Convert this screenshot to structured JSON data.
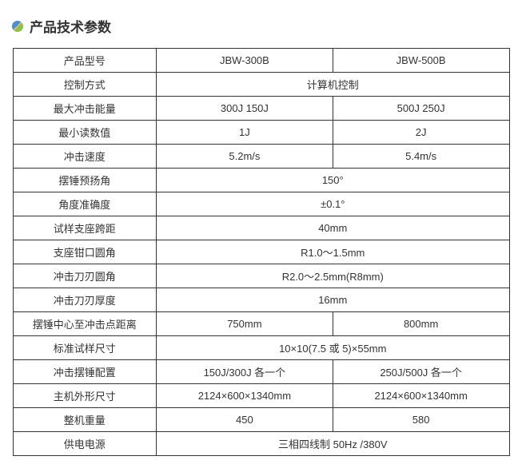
{
  "title": "产品技术参数",
  "colors": {
    "border": "#333333",
    "text": "#333333",
    "background": "#ffffff"
  },
  "table": {
    "header": {
      "label": "产品型号",
      "col1": "JBW-300B",
      "col2": "JBW-500B"
    },
    "rows": [
      {
        "label": "控制方式",
        "merged": "计算机控制"
      },
      {
        "label": "最大冲击能量",
        "col1": "300J 150J",
        "col2": "500J 250J"
      },
      {
        "label": "最小读数值",
        "col1": "1J",
        "col2": "2J"
      },
      {
        "label": "冲击速度",
        "col1": "5.2m/s",
        "col2": "5.4m/s"
      },
      {
        "label": "摆锤预扬角",
        "merged": "150°"
      },
      {
        "label": "角度准确度",
        "merged": "±0.1°"
      },
      {
        "label": "试样支座跨距",
        "merged": "40mm"
      },
      {
        "label": "支座钳口圆角",
        "merged": "R1.0～1.5mm"
      },
      {
        "label": "冲击刀刃圆角",
        "merged": "R2.0～2.5mm(R8mm)"
      },
      {
        "label": "冲击刀刃厚度",
        "merged": "16mm"
      },
      {
        "label": "摆锤中心至冲击点距离",
        "col1": "750mm",
        "col2": "800mm"
      },
      {
        "label": "标准试样尺寸",
        "merged": "10×10(7.5 或 5)×55mm"
      },
      {
        "label": "冲击摆锤配置",
        "col1": "150J/300J 各一个",
        "col2": "250J/500J 各一个"
      },
      {
        "label": "主机外形尺寸",
        "col1": "2124×600×1340mm",
        "col2": "2124×600×1340mm"
      },
      {
        "label": "整机重量",
        "col1": "450",
        "col2": "580"
      },
      {
        "label": "供电电源",
        "merged": "三相四线制 50Hz /380V"
      }
    ]
  }
}
